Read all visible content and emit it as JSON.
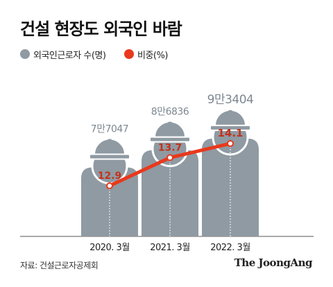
{
  "title": "건설 현장도 외국인 바람",
  "legend": [
    {
      "label": "외국인근로자 수(명)",
      "color": "#8f9aa3"
    },
    {
      "label": "비중(%)",
      "color": "#e8391c"
    }
  ],
  "chart_data": {
    "type": "bar",
    "categories": [
      "2020. 3월",
      "2021. 3월",
      "2022. 3월"
    ],
    "series": [
      {
        "name": "외국인근로자 수(명)",
        "values": [
          77047,
          86836,
          93404
        ],
        "labels": [
          "7만7047",
          "8만6836",
          "9만3404"
        ],
        "color": "#8f9aa3"
      },
      {
        "name": "비중(%)",
        "type": "line",
        "values": [
          12.9,
          13.7,
          14.1
        ],
        "labels": [
          "12.9",
          "13.7",
          "14.1"
        ],
        "color": "#e8391c"
      }
    ]
  },
  "source": "자료: 건설근로자공제회",
  "brand": "The JoongAng"
}
